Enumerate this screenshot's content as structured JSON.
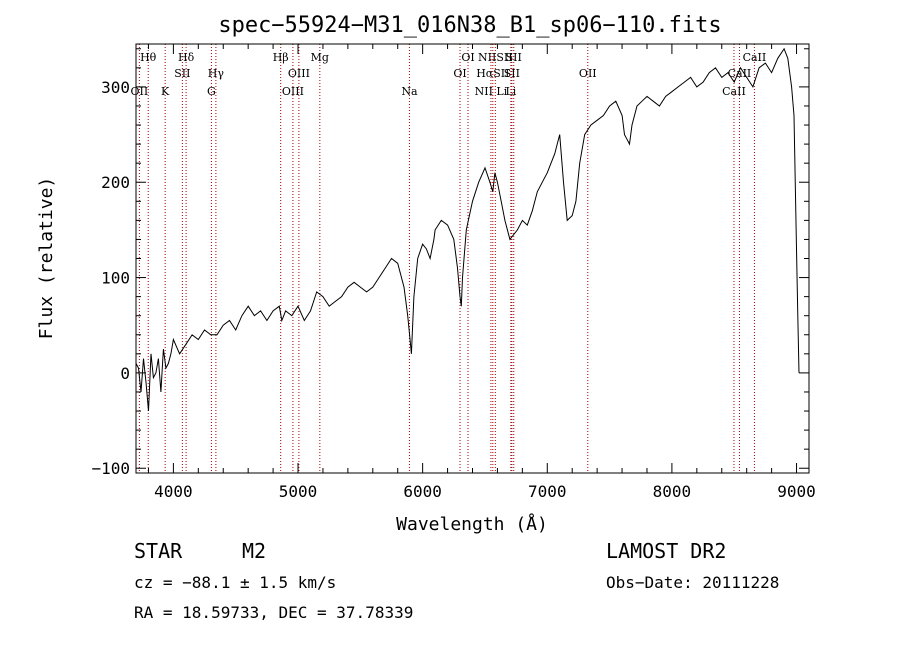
{
  "chart_data": {
    "type": "line",
    "title": "spec−55924−M31_016N38_B1_sp06−110.fits",
    "xlabel": "Wavelength (Å)",
    "ylabel": "Flux (relative)",
    "xlim": [
      3700,
      9100
    ],
    "ylim": [
      -105,
      345
    ],
    "xticks": [
      4000,
      5000,
      6000,
      7000,
      8000,
      9000
    ],
    "yticks": [
      -100,
      0,
      100,
      200,
      300
    ],
    "xtick_labels": [
      "4000",
      "5000",
      "6000",
      "7000",
      "8000",
      "9000"
    ],
    "ytick_labels": [
      "−100",
      "0",
      "100",
      "200",
      "300"
    ],
    "grid": false,
    "series": [
      {
        "name": "spectrum",
        "x": [
          3700,
          3720,
          3740,
          3760,
          3780,
          3800,
          3820,
          3840,
          3860,
          3880,
          3900,
          3920,
          3940,
          3960,
          3980,
          4000,
          4050,
          4100,
          4150,
          4200,
          4250,
          4300,
          4350,
          4400,
          4450,
          4500,
          4550,
          4600,
          4650,
          4700,
          4750,
          4800,
          4850,
          4870,
          4900,
          4950,
          5000,
          5050,
          5100,
          5150,
          5200,
          5250,
          5300,
          5350,
          5400,
          5450,
          5500,
          5550,
          5600,
          5650,
          5700,
          5750,
          5800,
          5850,
          5880,
          5895,
          5910,
          5930,
          5960,
          6000,
          6030,
          6060,
          6090,
          6100,
          6150,
          6200,
          6250,
          6280,
          6300,
          6310,
          6320,
          6350,
          6400,
          6450,
          6500,
          6540,
          6563,
          6580,
          6600,
          6630,
          6660,
          6700,
          6730,
          6760,
          6800,
          6840,
          6880,
          6920,
          6960,
          7000,
          7030,
          7060,
          7080,
          7100,
          7130,
          7160,
          7200,
          7230,
          7260,
          7300,
          7350,
          7400,
          7450,
          7500,
          7550,
          7600,
          7620,
          7640,
          7660,
          7680,
          7720,
          7760,
          7800,
          7850,
          7900,
          7950,
          8000,
          8050,
          8100,
          8150,
          8200,
          8250,
          8300,
          8350,
          8400,
          8450,
          8500,
          8550,
          8600,
          8650,
          8700,
          8750,
          8800,
          8850,
          8900,
          8930,
          8960,
          8980,
          9000,
          9010,
          9020
        ],
        "y": [
          10,
          5,
          -20,
          15,
          -10,
          -40,
          20,
          -5,
          0,
          15,
          -20,
          25,
          5,
          10,
          20,
          35,
          20,
          30,
          40,
          35,
          45,
          40,
          40,
          50,
          55,
          45,
          60,
          70,
          60,
          65,
          55,
          65,
          70,
          55,
          65,
          60,
          70,
          55,
          65,
          85,
          80,
          70,
          75,
          80,
          90,
          95,
          90,
          85,
          90,
          100,
          110,
          120,
          115,
          90,
          60,
          40,
          20,
          80,
          120,
          135,
          130,
          120,
          140,
          150,
          160,
          155,
          140,
          110,
          80,
          70,
          100,
          150,
          180,
          200,
          215,
          200,
          190,
          210,
          200,
          180,
          160,
          140,
          145,
          150,
          160,
          155,
          170,
          190,
          200,
          210,
          220,
          230,
          240,
          250,
          200,
          160,
          165,
          180,
          220,
          250,
          260,
          265,
          270,
          280,
          285,
          270,
          250,
          245,
          240,
          260,
          280,
          285,
          290,
          285,
          280,
          290,
          295,
          300,
          305,
          310,
          300,
          305,
          315,
          320,
          310,
          315,
          305,
          320,
          310,
          300,
          320,
          325,
          315,
          330,
          340,
          330,
          300,
          270,
          130,
          60,
          0
        ],
        "color": "#000000"
      }
    ],
    "emission_lines": [
      {
        "label": "Hθ",
        "x": 3798,
        "row": 1
      },
      {
        "label": "OII",
        "x": 3727,
        "row": 3
      },
      {
        "label": "Hδ",
        "x": 4102,
        "row": 1
      },
      {
        "label": "K",
        "x": 3934,
        "row": 3
      },
      {
        "label": "SII",
        "x": 4072,
        "row": 2
      },
      {
        "label": "Hγ",
        "x": 4341,
        "row": 2
      },
      {
        "label": "G",
        "x": 4305,
        "row": 3
      },
      {
        "label": "Hβ",
        "x": 4861,
        "row": 1
      },
      {
        "label": "OIII",
        "x": 5007,
        "row": 2
      },
      {
        "label": "OIII",
        "x": 4959,
        "row": 3
      },
      {
        "label": "Mg",
        "x": 5175,
        "row": 1
      },
      {
        "label": "Na",
        "x": 5894,
        "row": 3
      },
      {
        "label": "OI",
        "x": 6364,
        "row": 1
      },
      {
        "label": "OI",
        "x": 6300,
        "row": 2
      },
      {
        "label": "NIISII",
        "x": 6583,
        "row": 1
      },
      {
        "label": "HαSII",
        "x": 6563,
        "row": 2
      },
      {
        "label": "NII Li",
        "x": 6548,
        "row": 3
      },
      {
        "label": "SII",
        "x": 6731,
        "row": 1
      },
      {
        "label": "SII",
        "x": 6716,
        "row": 2
      },
      {
        "label": "Li",
        "x": 6708,
        "row": 3
      },
      {
        "label": "OII",
        "x": 7325,
        "row": 2
      },
      {
        "label": "CaII",
        "x": 8662,
        "row": 1
      },
      {
        "label": "CaII",
        "x": 8542,
        "row": 2
      },
      {
        "label": "CaII",
        "x": 8498,
        "row": 3
      }
    ],
    "line_color": "#a00000"
  },
  "info": {
    "object_class": "STAR",
    "subclass": "M2",
    "survey": "LAMOST DR2",
    "redshift": "cz = −88.1 ± 1.5 km/s",
    "obs_date": "Obs−Date: 20111228",
    "coords": "RA =  18.59733, DEC =  37.78339"
  }
}
